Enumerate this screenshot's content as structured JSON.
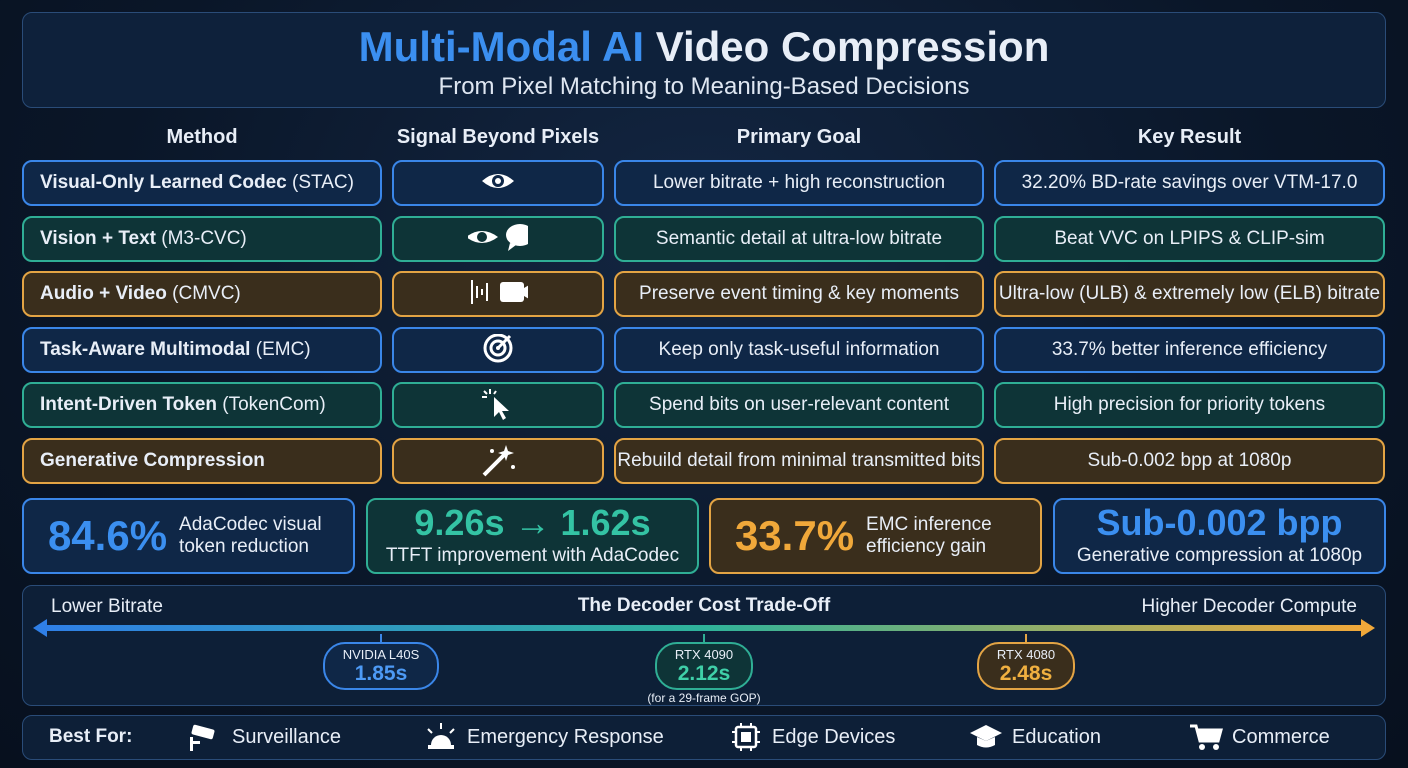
{
  "header": {
    "title_highlight": "Multi-Modal AI",
    "title_rest": "Video Compression",
    "subtitle": "From Pixel Matching to Meaning-Based Decisions"
  },
  "table": {
    "columns": [
      "Method",
      "Signal Beyond Pixels",
      "Primary Goal",
      "Key Result"
    ],
    "rows": [
      {
        "method": "Visual-Only Learned Codec",
        "abbr": "(STAC)",
        "goal": "Lower bitrate + high reconstruction",
        "result": "32.20% BD-rate savings over VTM-17.0"
      },
      {
        "method": "Vision + Text",
        "abbr": "(M3-CVC)",
        "goal": "Semantic detail at ultra-low bitrate",
        "result": "Beat VVC on LPIPS & CLIP-sim"
      },
      {
        "method": "Audio + Video",
        "abbr": "(CMVC)",
        "goal": "Preserve event timing & key moments",
        "result": "Ultra-low (ULB) & extremely low (ELB) bitrate"
      },
      {
        "method": "Task-Aware Multimodal",
        "abbr": "(EMC)",
        "goal": "Keep only task-useful information",
        "result": "33.7% better inference efficiency"
      },
      {
        "method": "Intent-Driven Token",
        "abbr": "(TokenCom)",
        "goal": "Spend bits on user-relevant content",
        "result": "High precision for priority tokens"
      },
      {
        "method": "Generative Compression",
        "goal": "Rebuild detail from minimal transmitted bits",
        "result": "Sub-0.002 bpp at 1080p"
      }
    ]
  },
  "stats": [
    {
      "value": "84.6%",
      "label": "AdaCodec visual token reduction"
    },
    {
      "value": "9.26s → 1.62s",
      "label": "TTFT improvement with AdaCodec"
    },
    {
      "value": "33.7%",
      "label": "EMC inference efficiency gain"
    },
    {
      "value": "Sub-0.002 bpp",
      "label": "Generative compression at 1080p"
    }
  ],
  "tradeoff": {
    "title": "The Decoder Cost Trade-Off",
    "left": "Lower Bitrate",
    "right": "Higher Decoder Compute",
    "markers": [
      {
        "gpu": "NVIDIA L40S",
        "time": "1.85s"
      },
      {
        "gpu": "RTX 4090",
        "time": "2.12s",
        "note": "(for a 29-frame GOP)"
      },
      {
        "gpu": "RTX 4080",
        "time": "2.48s"
      }
    ]
  },
  "best_for": {
    "label": "Best For:",
    "items": [
      "Surveillance",
      "Emergency Response",
      "Edge Devices",
      "Education",
      "Commerce"
    ]
  }
}
